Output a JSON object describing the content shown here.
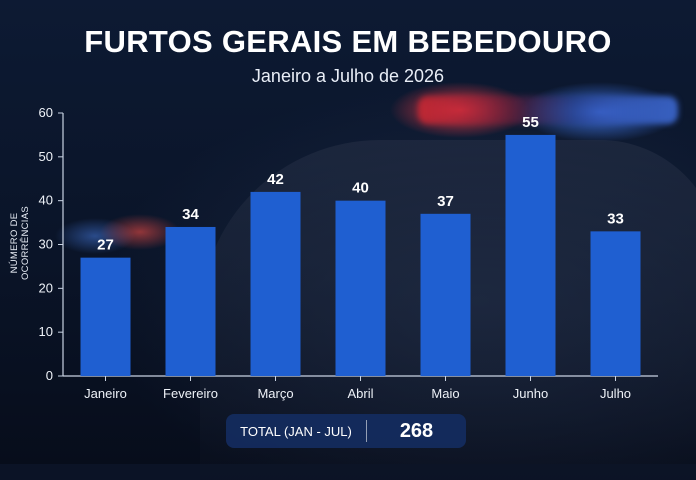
{
  "chart_data": {
    "type": "bar",
    "title": "FURTOS GERAIS EM BEBEDOURO",
    "subtitle": "Janeiro a Julho de 2026",
    "xlabel": "",
    "ylabel": "NÚMERO DE OCORRÊNCIAS",
    "categories": [
      "Janeiro",
      "Fevereiro",
      "Março",
      "Abril",
      "Maio",
      "Junho",
      "Julho"
    ],
    "values": [
      27,
      34,
      42,
      40,
      37,
      55,
      33
    ],
    "ylim": [
      0,
      60
    ],
    "yticks": [
      0,
      10,
      20,
      30,
      40,
      50,
      60
    ],
    "grid": false,
    "bar_color": "#1f5fd1"
  },
  "summary": {
    "label": "TOTAL (JAN - JUL)",
    "value": "268"
  }
}
